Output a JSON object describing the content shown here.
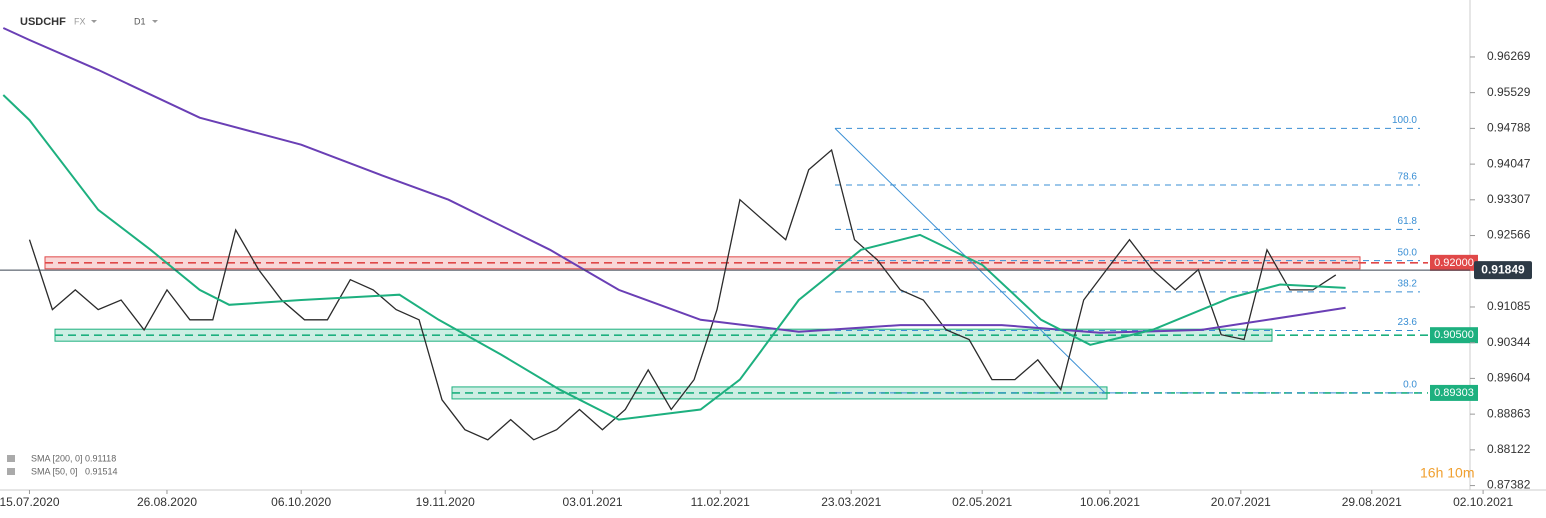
{
  "header": {
    "symbol": "USDCHF",
    "market": "FX",
    "timeframe": "D1"
  },
  "chart_data": {
    "type": "line",
    "ylim": [
      0.8729,
      0.9745
    ],
    "yticks": [
      0.96269,
      0.95529,
      0.94788,
      0.94047,
      0.93307,
      0.92566,
      0.91085,
      0.90344,
      0.89604,
      0.88863,
      0.88122,
      0.87382
    ],
    "xlim": [
      "2020-07-06",
      "2021-09-28"
    ],
    "xticks": [
      {
        "value": "2020-07-15",
        "label": "15.07.2020"
      },
      {
        "value": "2020-08-26",
        "label": "26.08.2020"
      },
      {
        "value": "2020-10-06",
        "label": "06.10.2020"
      },
      {
        "value": "2020-11-19",
        "label": "19.11.2020"
      },
      {
        "value": "2021-01-03",
        "label": "03.01.2021"
      },
      {
        "value": "2021-02-11",
        "label": "11.02.2021"
      },
      {
        "value": "2021-03-23",
        "label": "23.03.2021"
      },
      {
        "value": "2021-05-02",
        "label": "02.05.2021"
      },
      {
        "value": "2021-06-10",
        "label": "10.06.2021"
      },
      {
        "value": "2021-07-20",
        "label": "20.07.2021"
      },
      {
        "value": "2021-08-29",
        "label": "29.08.2021"
      },
      {
        "value": "2021-10-02",
        "label": "02.10.2021"
      }
    ],
    "series": [
      {
        "name": "USDCHF",
        "color": "#2b2b2b",
        "x": [
          "2020-07-15",
          "2020-07-22",
          "2020-07-29",
          "2020-08-05",
          "2020-08-12",
          "2020-08-19",
          "2020-08-26",
          "2020-09-02",
          "2020-09-09",
          "2020-09-16",
          "2020-09-23",
          "2020-09-30",
          "2020-10-07",
          "2020-10-14",
          "2020-10-21",
          "2020-10-28",
          "2020-11-04",
          "2020-11-11",
          "2020-11-18",
          "2020-11-25",
          "2020-12-02",
          "2020-12-09",
          "2020-12-16",
          "2020-12-23",
          "2020-12-30",
          "2021-01-06",
          "2021-01-13",
          "2021-01-20",
          "2021-01-27",
          "2021-02-03",
          "2021-02-10",
          "2021-02-17",
          "2021-02-24",
          "2021-03-03",
          "2021-03-10",
          "2021-03-17",
          "2021-03-24",
          "2021-03-31",
          "2021-04-07",
          "2021-04-14",
          "2021-04-21",
          "2021-04-28",
          "2021-05-05",
          "2021-05-12",
          "2021-05-19",
          "2021-05-26",
          "2021-06-02",
          "2021-06-09",
          "2021-06-16",
          "2021-06-23",
          "2021-06-30",
          "2021-07-07",
          "2021-07-14",
          "2021-07-21",
          "2021-07-28",
          "2021-08-04",
          "2021-08-11",
          "2021-08-18"
        ],
        "values": [
          0.9248,
          0.9103,
          0.9144,
          0.9103,
          0.9123,
          0.9061,
          0.9144,
          0.9082,
          0.9082,
          0.9268,
          0.9186,
          0.9123,
          0.9082,
          0.9082,
          0.9165,
          0.9144,
          0.9103,
          0.9082,
          0.8916,
          0.8854,
          0.8833,
          0.8875,
          0.8833,
          0.8854,
          0.8896,
          0.8854,
          0.8896,
          0.8978,
          0.8896,
          0.8958,
          0.9103,
          0.9331,
          0.9289,
          0.9248,
          0.9393,
          0.9434,
          0.9248,
          0.9206,
          0.9144,
          0.9123,
          0.9061,
          0.9041,
          0.8958,
          0.8958,
          0.8999,
          0.8937,
          0.9123,
          0.9186,
          0.9248,
          0.9186,
          0.9144,
          0.9186,
          0.9051,
          0.9041,
          0.9227,
          0.9144,
          0.9144,
          0.9175
        ]
      },
      {
        "name": "SMA [200, 0]",
        "color": "#6a3fb5",
        "legend_value": 0.91118,
        "x": [
          "2020-07-07",
          "2020-07-15",
          "2020-08-05",
          "2020-09-05",
          "2020-10-06",
          "2020-10-30",
          "2020-11-20",
          "2020-12-21",
          "2021-01-11",
          "2021-02-05",
          "2021-03-07",
          "2021-04-07",
          "2021-05-08",
          "2021-06-07",
          "2021-07-08",
          "2021-08-07",
          "2021-08-21"
        ],
        "values": [
          0.9687,
          0.9662,
          0.96,
          0.9501,
          0.9445,
          0.9383,
          0.9331,
          0.9227,
          0.9144,
          0.9082,
          0.9057,
          0.9071,
          0.9071,
          0.9055,
          0.9061,
          0.9092,
          0.9107
        ]
      },
      {
        "name": "SMA [50, 0]",
        "color": "#1db07f",
        "legend_value": 0.91514,
        "x": [
          "2020-07-07",
          "2020-07-15",
          "2020-08-05",
          "2020-08-21",
          "2020-09-05",
          "2020-09-14",
          "2020-10-06",
          "2020-11-05",
          "2020-11-17",
          "2020-12-06",
          "2020-12-24",
          "2021-01-11",
          "2021-02-05",
          "2021-02-17",
          "2021-03-07",
          "2021-03-26",
          "2021-04-13",
          "2021-05-02",
          "2021-05-20",
          "2021-06-04",
          "2021-06-23",
          "2021-07-17",
          "2021-08-01",
          "2021-08-21"
        ],
        "values": [
          0.9548,
          0.9496,
          0.931,
          0.9227,
          0.9144,
          0.9113,
          0.9123,
          0.9134,
          0.9082,
          0.901,
          0.8937,
          0.8875,
          0.8896,
          0.8958,
          0.9123,
          0.9227,
          0.9258,
          0.9196,
          0.9082,
          0.903,
          0.9061,
          0.9128,
          0.9155,
          0.9148
        ]
      }
    ],
    "levels": [
      {
        "value": 0.92,
        "label": "0.92000",
        "color": "#e04848"
      },
      {
        "value": 0.905,
        "label": "0.90500",
        "color": "#1db07f"
      },
      {
        "value": 0.89303,
        "color": "#1db07f"
      }
    ],
    "fibonacci": {
      "high": 0.94788,
      "low": 0.89303,
      "color": "#3a8fd4",
      "levels": [
        {
          "value": 100,
          "label": "100.0"
        },
        78.6,
        61.8,
        {
          "value": 50,
          "label": "50.0"
        },
        38.2,
        23.6,
        {
          "value": 0,
          "label": "0.0"
        }
      ]
    },
    "current_price": 0.91849,
    "timer": "16h 10m"
  }
}
